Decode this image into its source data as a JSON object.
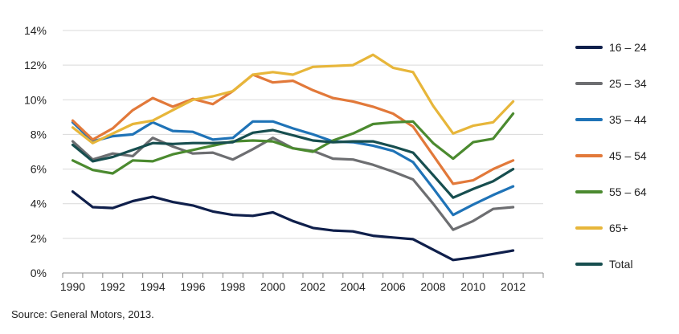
{
  "chart_data": {
    "type": "line",
    "x": [
      1990,
      1991,
      1992,
      1993,
      1994,
      1995,
      1996,
      1997,
      1998,
      1999,
      2000,
      2001,
      2002,
      2003,
      2004,
      2005,
      2006,
      2007,
      2008,
      2009,
      2010,
      2011,
      2012,
      2013
    ],
    "x_ticks": [
      "1990",
      "1992",
      "1994",
      "1996",
      "1998",
      "2000",
      "2002",
      "2004",
      "2006",
      "2008",
      "2010",
      "2012"
    ],
    "y_ticks": [
      "0%",
      "2%",
      "4%",
      "6%",
      "8%",
      "10%",
      "12%",
      "14%"
    ],
    "ylim": [
      0,
      14
    ],
    "grid": "horizontal",
    "legend_position": "right",
    "series": [
      {
        "name": "16 – 24",
        "color": "#0f1f4b",
        "values": [
          4.7,
          3.8,
          3.75,
          4.15,
          4.4,
          4.1,
          3.9,
          3.55,
          3.35,
          3.3,
          3.5,
          3.0,
          2.6,
          2.45,
          2.4,
          2.15,
          2.05,
          1.95,
          1.35,
          0.75,
          0.9,
          1.1,
          1.3,
          null
        ]
      },
      {
        "name": "25 – 34",
        "color": "#6d6e71",
        "values": [
          7.6,
          6.55,
          6.9,
          6.75,
          7.8,
          7.3,
          6.9,
          6.95,
          6.55,
          7.15,
          7.8,
          7.2,
          7.05,
          6.6,
          6.55,
          6.25,
          5.85,
          5.4,
          4.0,
          2.5,
          3.0,
          3.7,
          3.8,
          null
        ]
      },
      {
        "name": "35 – 44",
        "color": "#1f73b7",
        "values": [
          8.7,
          7.6,
          7.9,
          8.0,
          8.7,
          8.2,
          8.15,
          7.7,
          7.8,
          8.75,
          8.75,
          8.35,
          8.0,
          7.6,
          7.55,
          7.35,
          7.05,
          6.4,
          4.9,
          3.35,
          3.95,
          4.5,
          5.0,
          null
        ]
      },
      {
        "name": "45 – 54",
        "color": "#e2793a",
        "values": [
          8.8,
          7.7,
          8.35,
          9.4,
          10.1,
          9.6,
          10.05,
          9.75,
          10.5,
          11.45,
          11.0,
          11.1,
          10.55,
          10.1,
          9.9,
          9.6,
          9.2,
          8.45,
          6.8,
          5.15,
          5.35,
          6.0,
          6.5,
          null
        ]
      },
      {
        "name": "55 – 64",
        "color": "#4b8a2f",
        "values": [
          6.5,
          5.95,
          5.75,
          6.5,
          6.45,
          6.85,
          7.1,
          7.35,
          7.6,
          7.65,
          7.6,
          7.2,
          7.0,
          7.65,
          8.05,
          8.6,
          8.7,
          8.75,
          7.5,
          6.6,
          7.55,
          7.75,
          9.2,
          null
        ]
      },
      {
        "name": "65+",
        "color": "#e7b63a",
        "values": [
          8.4,
          7.5,
          8.05,
          8.6,
          8.8,
          9.4,
          10.0,
          10.2,
          10.5,
          11.45,
          11.6,
          11.45,
          11.9,
          11.95,
          12.0,
          12.6,
          11.85,
          11.6,
          9.65,
          8.05,
          8.5,
          8.7,
          9.9,
          null
        ]
      },
      {
        "name": "Total",
        "color": "#174e4f",
        "values": [
          7.4,
          6.45,
          6.7,
          7.1,
          7.5,
          7.45,
          7.5,
          7.5,
          7.55,
          8.1,
          8.25,
          7.95,
          7.65,
          7.55,
          7.6,
          7.6,
          7.3,
          6.95,
          5.65,
          4.35,
          4.85,
          5.3,
          6.0,
          null
        ]
      }
    ]
  },
  "source_text": "Source: General Motors, 2013."
}
